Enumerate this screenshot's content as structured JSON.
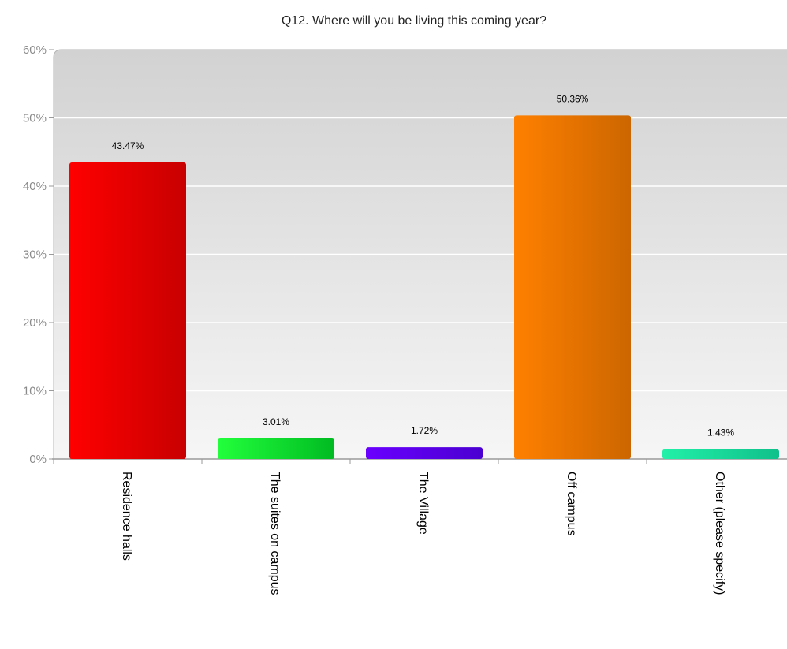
{
  "chart_data": {
    "type": "bar",
    "title": "Q12. Where will you be living this coming year?",
    "xlabel": "",
    "ylabel": "",
    "ylim": [
      0,
      60
    ],
    "y_ticks": [
      {
        "value": 0,
        "label": "0%"
      },
      {
        "value": 10,
        "label": "10%"
      },
      {
        "value": 20,
        "label": "20%"
      },
      {
        "value": 30,
        "label": "30%"
      },
      {
        "value": 40,
        "label": "40%"
      },
      {
        "value": 50,
        "label": "50%"
      },
      {
        "value": 60,
        "label": "60%"
      }
    ],
    "grid": true,
    "legend": "none",
    "categories": [
      "Residence halls",
      "The suites on campus",
      "The Village",
      "Off campus",
      "Other (please specify)"
    ],
    "values": [
      43.47,
      3.01,
      1.72,
      50.36,
      1.43
    ],
    "value_labels": [
      "43.47%",
      "3.01%",
      "1.72%",
      "50.36%",
      "1.43%"
    ],
    "colors": [
      {
        "light": "#ff0000",
        "dark": "#c80000"
      },
      {
        "light": "#22ff3c",
        "dark": "#00bb22"
      },
      {
        "light": "#6a00ff",
        "dark": "#4a00d0"
      },
      {
        "light": "#ff8000",
        "dark": "#cc6600"
      },
      {
        "light": "#22f0a8",
        "dark": "#10c08a"
      }
    ]
  }
}
